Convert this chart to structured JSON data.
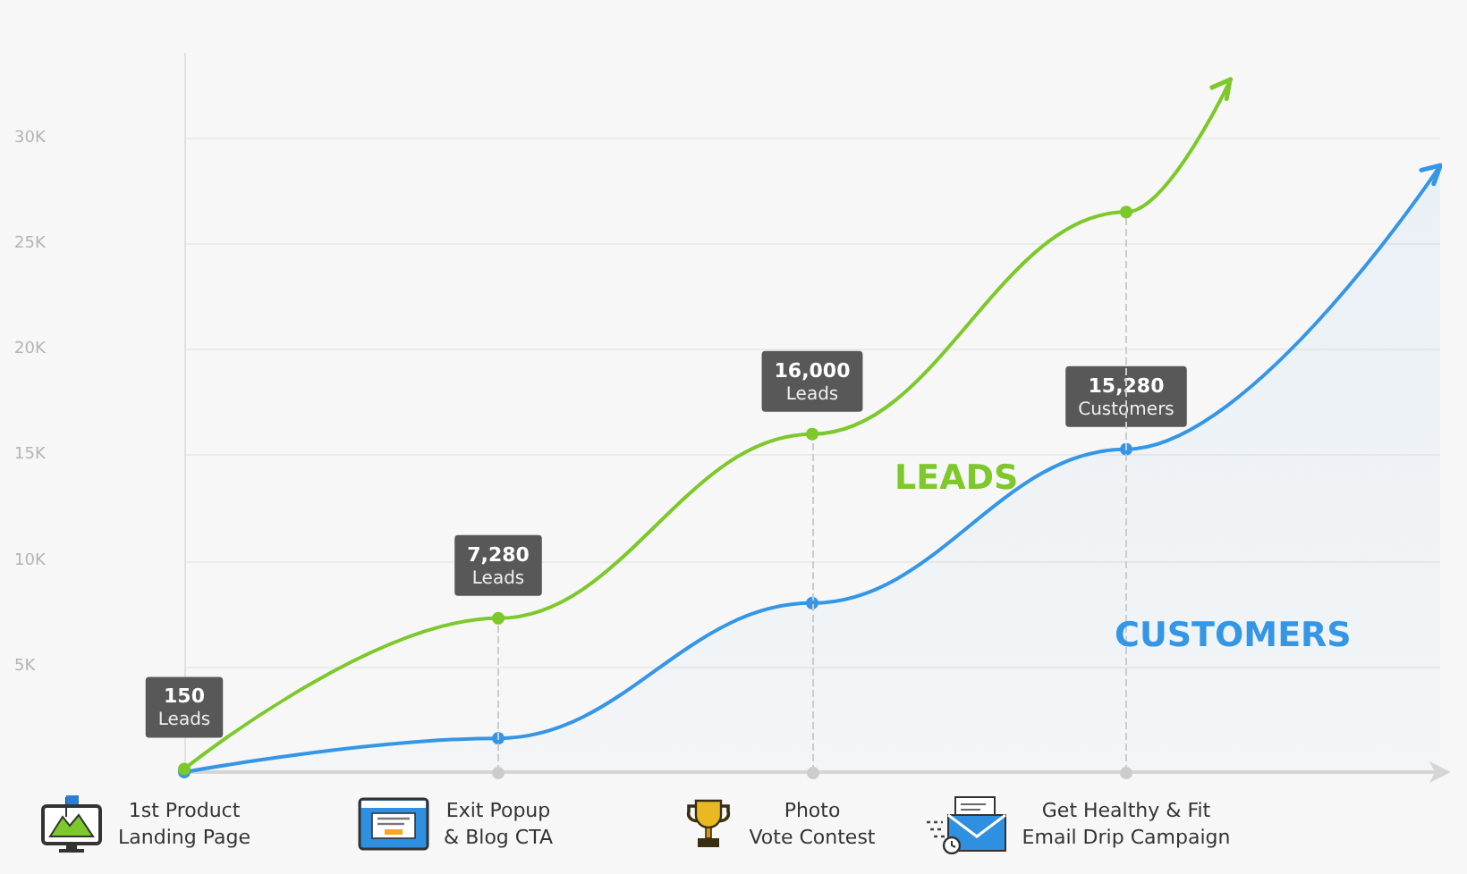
{
  "chart_data": {
    "type": "line",
    "categories": [
      "1st Product\nLanding Page",
      null,
      null,
      "Exit Popup\n& Blog CTA",
      null,
      null,
      "Photo\nVote Contest",
      null,
      null,
      "Get Healthy & Fit\nEmail Drip Campaign",
      null,
      null,
      null
    ],
    "ylim": [
      0,
      34000
    ],
    "yticks": [
      {
        "value": 5000,
        "label": "5K"
      },
      {
        "value": 10000,
        "label": "10K"
      },
      {
        "value": 15000,
        "label": "15K"
      },
      {
        "value": 20000,
        "label": "20K"
      },
      {
        "value": 25000,
        "label": "25K"
      },
      {
        "value": 30000,
        "label": "30K"
      }
    ],
    "grid": "y",
    "marker": "circle",
    "series": [
      {
        "name": "LEADS",
        "color": "#7dc82a",
        "values": [
          150,
          null,
          null,
          7280,
          null,
          null,
          16000,
          null,
          null,
          26500,
          32800,
          null,
          null
        ],
        "value_labels": [
          "150\nLeads",
          null,
          null,
          "7,280\nLeads",
          null,
          null,
          "16,000\nLeads",
          null,
          null,
          null,
          null,
          null,
          null
        ]
      },
      {
        "name": "CUSTOMERS",
        "type": "area",
        "color": "#3596e6",
        "values": [
          0,
          null,
          null,
          1600,
          null,
          null,
          8000,
          null,
          null,
          15280,
          null,
          null,
          28700
        ],
        "value_labels": [
          null,
          null,
          null,
          null,
          null,
          null,
          null,
          null,
          null,
          "15,280\nCustomers",
          null,
          null,
          null
        ]
      }
    ],
    "ref_lines": [
      {
        "axis": "x",
        "value": "Exit Popup\n& Blog CTA",
        "color": "#cccccc",
        "line_style": "dashed"
      },
      {
        "axis": "x",
        "value": "Photo\nVote Contest",
        "color": "#cccccc",
        "line_style": "dashed"
      },
      {
        "axis": "x",
        "value": "Get Healthy & Fit\nEmail Drip Campaign",
        "color": "#cccccc",
        "line_style": "dashed"
      }
    ]
  }
}
